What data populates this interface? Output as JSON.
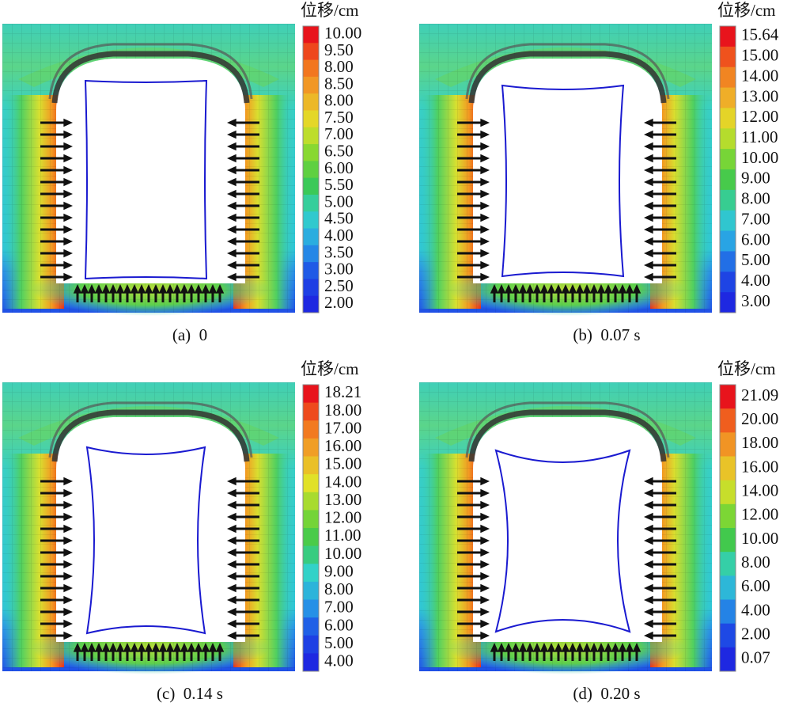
{
  "panels": [
    {
      "unit": "位移/cm",
      "caption": "(a)  0",
      "legend": [
        "10.00",
        "9.50",
        "8.00",
        "8.50",
        "8.00",
        "7.50",
        "7.00",
        "6.50",
        "6.00",
        "5.50",
        "5.00",
        "4.50",
        "4.00",
        "3.50",
        "3.00",
        "2.50",
        "2.00"
      ]
    },
    {
      "unit": "位移/cm",
      "caption": "(b)  0.07 s",
      "legend": [
        "15.64",
        "15.00",
        "14.00",
        "13.00",
        "12.00",
        "11.00",
        "10.00",
        "9.00",
        "8.00",
        "7.00",
        "6.00",
        "5.00",
        "4.00",
        "3.00"
      ]
    },
    {
      "unit": "位移/cm",
      "caption": "(c)  0.14 s",
      "legend": [
        "18.21",
        "18.00",
        "17.00",
        "16.00",
        "15.00",
        "14.00",
        "13.00",
        "12.00",
        "11.00",
        "10.00",
        "9.00",
        "8.00",
        "7.00",
        "6.00",
        "5.00",
        "4.00"
      ]
    },
    {
      "unit": "位移/cm",
      "caption": "(d)  0.20 s",
      "legend": [
        "21.09",
        "20.00",
        "18.00",
        "16.00",
        "14.00",
        "12.00",
        "10.00",
        "8.00",
        "6.00",
        "4.00",
        "2.00",
        "0.07"
      ]
    }
  ]
}
